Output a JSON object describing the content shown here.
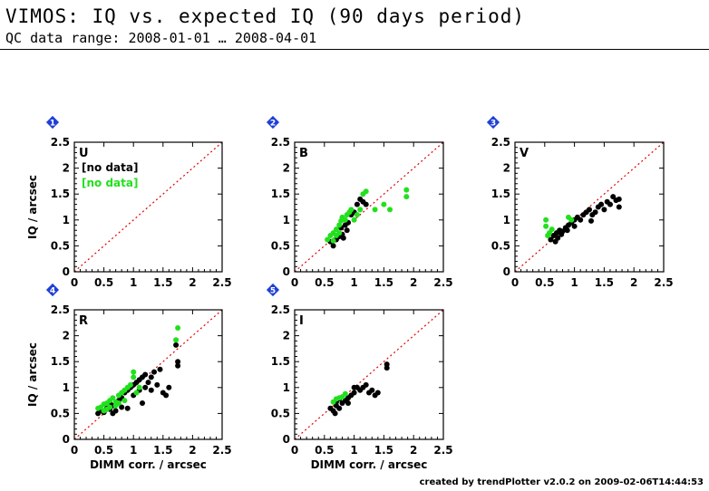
{
  "header": {
    "title": "VIMOS: IQ vs. expected IQ (90 days period)",
    "subtitle": "QC data range: 2008-01-01 … 2008-04-01"
  },
  "footer": {
    "text": "created by trendPlotter v2.0.2 on 2009-02-06T14:44:53"
  },
  "colors": {
    "series_black": "#000000",
    "series_green": "#22e01e",
    "badge": "#1e3fd6",
    "diagonal": "#e00000"
  },
  "chart_data": [
    {
      "type": "scatter",
      "panel": "1",
      "label": "U",
      "ylabel": "IQ / arcsec",
      "xlabel": "",
      "xlim": [
        0,
        2.5
      ],
      "ylim": [
        0,
        2.5
      ],
      "xticks": [
        "0",
        "0.5",
        "1",
        "1.5",
        "2",
        "2.5"
      ],
      "yticks": [
        "0",
        "0.5",
        "1",
        "1.5",
        "2",
        "2.5"
      ],
      "notes": [
        "[no data]",
        "[no data]"
      ],
      "series": [
        {
          "color": "#000000",
          "points": []
        },
        {
          "color": "#22e01e",
          "points": []
        }
      ]
    },
    {
      "type": "scatter",
      "panel": "2",
      "label": "B",
      "ylabel": "",
      "xlabel": "",
      "xlim": [
        0,
        2.5
      ],
      "ylim": [
        0,
        2.5
      ],
      "xticks": [
        "0",
        "0.5",
        "1",
        "1.5",
        "2",
        "2.5"
      ],
      "yticks": [
        "0",
        "0.5",
        "1",
        "1.5",
        "2",
        "2.5"
      ],
      "notes": [],
      "series": [
        {
          "color": "#000000",
          "points": [
            [
              0.6,
              0.58
            ],
            [
              0.65,
              0.5
            ],
            [
              0.7,
              0.62
            ],
            [
              0.75,
              0.68
            ],
            [
              0.8,
              0.72
            ],
            [
              0.82,
              0.65
            ],
            [
              0.88,
              0.8
            ],
            [
              0.9,
              0.95
            ],
            [
              0.95,
              1.1
            ],
            [
              1.0,
              1.15
            ],
            [
              1.05,
              1.3
            ],
            [
              1.1,
              1.4
            ],
            [
              1.15,
              1.35
            ],
            [
              1.2,
              1.3
            ],
            [
              0.85,
              0.9
            ],
            [
              0.78,
              0.85
            ]
          ]
        },
        {
          "color": "#22e01e",
          "points": [
            [
              0.55,
              0.62
            ],
            [
              0.6,
              0.7
            ],
            [
              0.65,
              0.75
            ],
            [
              0.7,
              0.82
            ],
            [
              0.75,
              0.9
            ],
            [
              0.78,
              0.98
            ],
            [
              0.8,
              1.05
            ],
            [
              0.85,
              1.0
            ],
            [
              0.88,
              1.1
            ],
            [
              0.92,
              1.15
            ],
            [
              0.95,
              1.2
            ],
            [
              1.0,
              1.0
            ],
            [
              1.05,
              1.1
            ],
            [
              1.1,
              1.2
            ],
            [
              1.15,
              1.5
            ],
            [
              1.2,
              1.55
            ],
            [
              1.35,
              1.2
            ],
            [
              1.5,
              1.3
            ],
            [
              1.6,
              1.2
            ],
            [
              1.88,
              1.45
            ],
            [
              1.88,
              1.58
            ],
            [
              0.7,
              0.7
            ],
            [
              0.65,
              0.6
            ],
            [
              0.75,
              0.75
            ]
          ]
        }
      ]
    },
    {
      "type": "scatter",
      "panel": "3",
      "label": "V",
      "ylabel": "",
      "xlabel": "",
      "xlim": [
        0,
        2.5
      ],
      "ylim": [
        0,
        2.5
      ],
      "xticks": [
        "0",
        "0.5",
        "1",
        "1.5",
        "2",
        "2.5"
      ],
      "yticks": [
        "0",
        "0.5",
        "1",
        "1.5",
        "2",
        "2.5"
      ],
      "notes": [],
      "series": [
        {
          "color": "#000000",
          "points": [
            [
              0.65,
              0.7
            ],
            [
              0.7,
              0.75
            ],
            [
              0.72,
              0.65
            ],
            [
              0.75,
              0.8
            ],
            [
              0.8,
              0.78
            ],
            [
              0.85,
              0.85
            ],
            [
              0.9,
              0.9
            ],
            [
              0.95,
              0.95
            ],
            [
              1.0,
              1.0
            ],
            [
              1.05,
              1.05
            ],
            [
              1.1,
              1.0
            ],
            [
              1.15,
              1.1
            ],
            [
              1.2,
              1.15
            ],
            [
              1.25,
              1.2
            ],
            [
              1.3,
              1.1
            ],
            [
              1.35,
              1.15
            ],
            [
              1.4,
              1.25
            ],
            [
              1.45,
              1.3
            ],
            [
              1.5,
              1.2
            ],
            [
              1.55,
              1.35
            ],
            [
              1.6,
              1.3
            ],
            [
              1.65,
              1.45
            ],
            [
              1.7,
              1.38
            ],
            [
              1.75,
              1.25
            ],
            [
              1.75,
              1.4
            ],
            [
              0.6,
              0.62
            ],
            [
              0.68,
              0.58
            ],
            [
              0.78,
              0.72
            ],
            [
              0.88,
              0.8
            ],
            [
              1.0,
              0.88
            ],
            [
              1.28,
              0.98
            ]
          ]
        },
        {
          "color": "#22e01e",
          "points": [
            [
              0.52,
              1.0
            ],
            [
              0.52,
              0.88
            ],
            [
              0.55,
              0.7
            ],
            [
              0.58,
              0.75
            ],
            [
              0.62,
              0.82
            ],
            [
              0.9,
              1.05
            ],
            [
              0.95,
              1.0
            ]
          ]
        }
      ]
    },
    {
      "type": "scatter",
      "panel": "4",
      "label": "R",
      "ylabel": "IQ / arcsec",
      "xlabel": "DIMM corr. / arcsec",
      "xlim": [
        0,
        2.5
      ],
      "ylim": [
        0,
        2.5
      ],
      "xticks": [
        "0",
        "0.5",
        "1",
        "1.5",
        "2",
        "2.5"
      ],
      "yticks": [
        "0",
        "0.5",
        "1",
        "1.5",
        "2",
        "2.5"
      ],
      "notes": [],
      "series": [
        {
          "color": "#000000",
          "points": [
            [
              0.4,
              0.5
            ],
            [
              0.45,
              0.55
            ],
            [
              0.5,
              0.52
            ],
            [
              0.55,
              0.6
            ],
            [
              0.6,
              0.58
            ],
            [
              0.65,
              0.65
            ],
            [
              0.7,
              0.7
            ],
            [
              0.75,
              0.75
            ],
            [
              0.8,
              0.8
            ],
            [
              0.85,
              0.9
            ],
            [
              0.9,
              0.95
            ],
            [
              0.95,
              1.0
            ],
            [
              1.0,
              1.05
            ],
            [
              1.05,
              1.1
            ],
            [
              1.1,
              1.15
            ],
            [
              1.15,
              1.2
            ],
            [
              1.2,
              1.25
            ],
            [
              1.25,
              1.1
            ],
            [
              1.3,
              1.2
            ],
            [
              1.35,
              1.3
            ],
            [
              1.4,
              1.05
            ],
            [
              1.45,
              1.35
            ],
            [
              1.5,
              0.9
            ],
            [
              1.55,
              0.85
            ],
            [
              1.6,
              1.0
            ],
            [
              1.75,
              1.5
            ],
            [
              1.72,
              1.82
            ],
            [
              1.75,
              1.42
            ],
            [
              0.9,
              0.6
            ],
            [
              1.0,
              0.85
            ],
            [
              1.1,
              0.95
            ],
            [
              1.2,
              1.0
            ],
            [
              0.7,
              0.55
            ],
            [
              0.8,
              0.62
            ],
            [
              1.3,
              0.95
            ],
            [
              1.15,
              0.7
            ],
            [
              0.6,
              0.7
            ],
            [
              0.65,
              0.5
            ]
          ]
        },
        {
          "color": "#22e01e",
          "points": [
            [
              0.45,
              0.62
            ],
            [
              0.5,
              0.68
            ],
            [
              0.55,
              0.7
            ],
            [
              0.6,
              0.75
            ],
            [
              0.65,
              0.8
            ],
            [
              0.7,
              0.72
            ],
            [
              0.75,
              0.85
            ],
            [
              0.8,
              0.9
            ],
            [
              0.85,
              0.95
            ],
            [
              0.9,
              1.0
            ],
            [
              0.95,
              1.05
            ],
            [
              1.0,
              1.2
            ],
            [
              1.0,
              1.3
            ],
            [
              0.5,
              0.55
            ],
            [
              0.55,
              0.58
            ],
            [
              0.6,
              0.62
            ],
            [
              0.4,
              0.6
            ],
            [
              0.7,
              0.65
            ],
            [
              0.75,
              0.7
            ],
            [
              1.05,
              0.9
            ],
            [
              1.1,
              1.0
            ],
            [
              1.72,
              1.92
            ],
            [
              1.75,
              2.15
            ],
            [
              0.85,
              0.75
            ]
          ]
        }
      ]
    },
    {
      "type": "scatter",
      "panel": "5",
      "label": "I",
      "ylabel": "",
      "xlabel": "DIMM corr. / arcsec",
      "xlim": [
        0,
        2.5
      ],
      "ylim": [
        0,
        2.5
      ],
      "xticks": [
        "0",
        "0.5",
        "1",
        "1.5",
        "2",
        "2.5"
      ],
      "yticks": [
        "0",
        "0.5",
        "1",
        "1.5",
        "2",
        "2.5"
      ],
      "notes": [],
      "series": [
        {
          "color": "#000000",
          "points": [
            [
              0.6,
              0.6
            ],
            [
              0.65,
              0.55
            ],
            [
              0.7,
              0.65
            ],
            [
              0.75,
              0.6
            ],
            [
              0.8,
              0.7
            ],
            [
              0.85,
              0.75
            ],
            [
              0.9,
              0.8
            ],
            [
              0.95,
              0.85
            ],
            [
              1.0,
              0.9
            ],
            [
              1.05,
              1.0
            ],
            [
              1.1,
              0.95
            ],
            [
              1.15,
              1.0
            ],
            [
              1.2,
              1.05
            ],
            [
              1.25,
              0.9
            ],
            [
              1.3,
              0.95
            ],
            [
              1.35,
              0.85
            ],
            [
              1.4,
              0.9
            ],
            [
              1.55,
              1.45
            ],
            [
              1.55,
              1.38
            ],
            [
              0.7,
              0.72
            ],
            [
              0.75,
              0.78
            ],
            [
              0.68,
              0.5
            ],
            [
              1.0,
              1.0
            ],
            [
              0.9,
              0.7
            ]
          ]
        },
        {
          "color": "#22e01e",
          "points": [
            [
              0.65,
              0.72
            ],
            [
              0.7,
              0.78
            ],
            [
              0.75,
              0.8
            ],
            [
              0.8,
              0.82
            ],
            [
              0.85,
              0.88
            ]
          ]
        }
      ]
    }
  ]
}
